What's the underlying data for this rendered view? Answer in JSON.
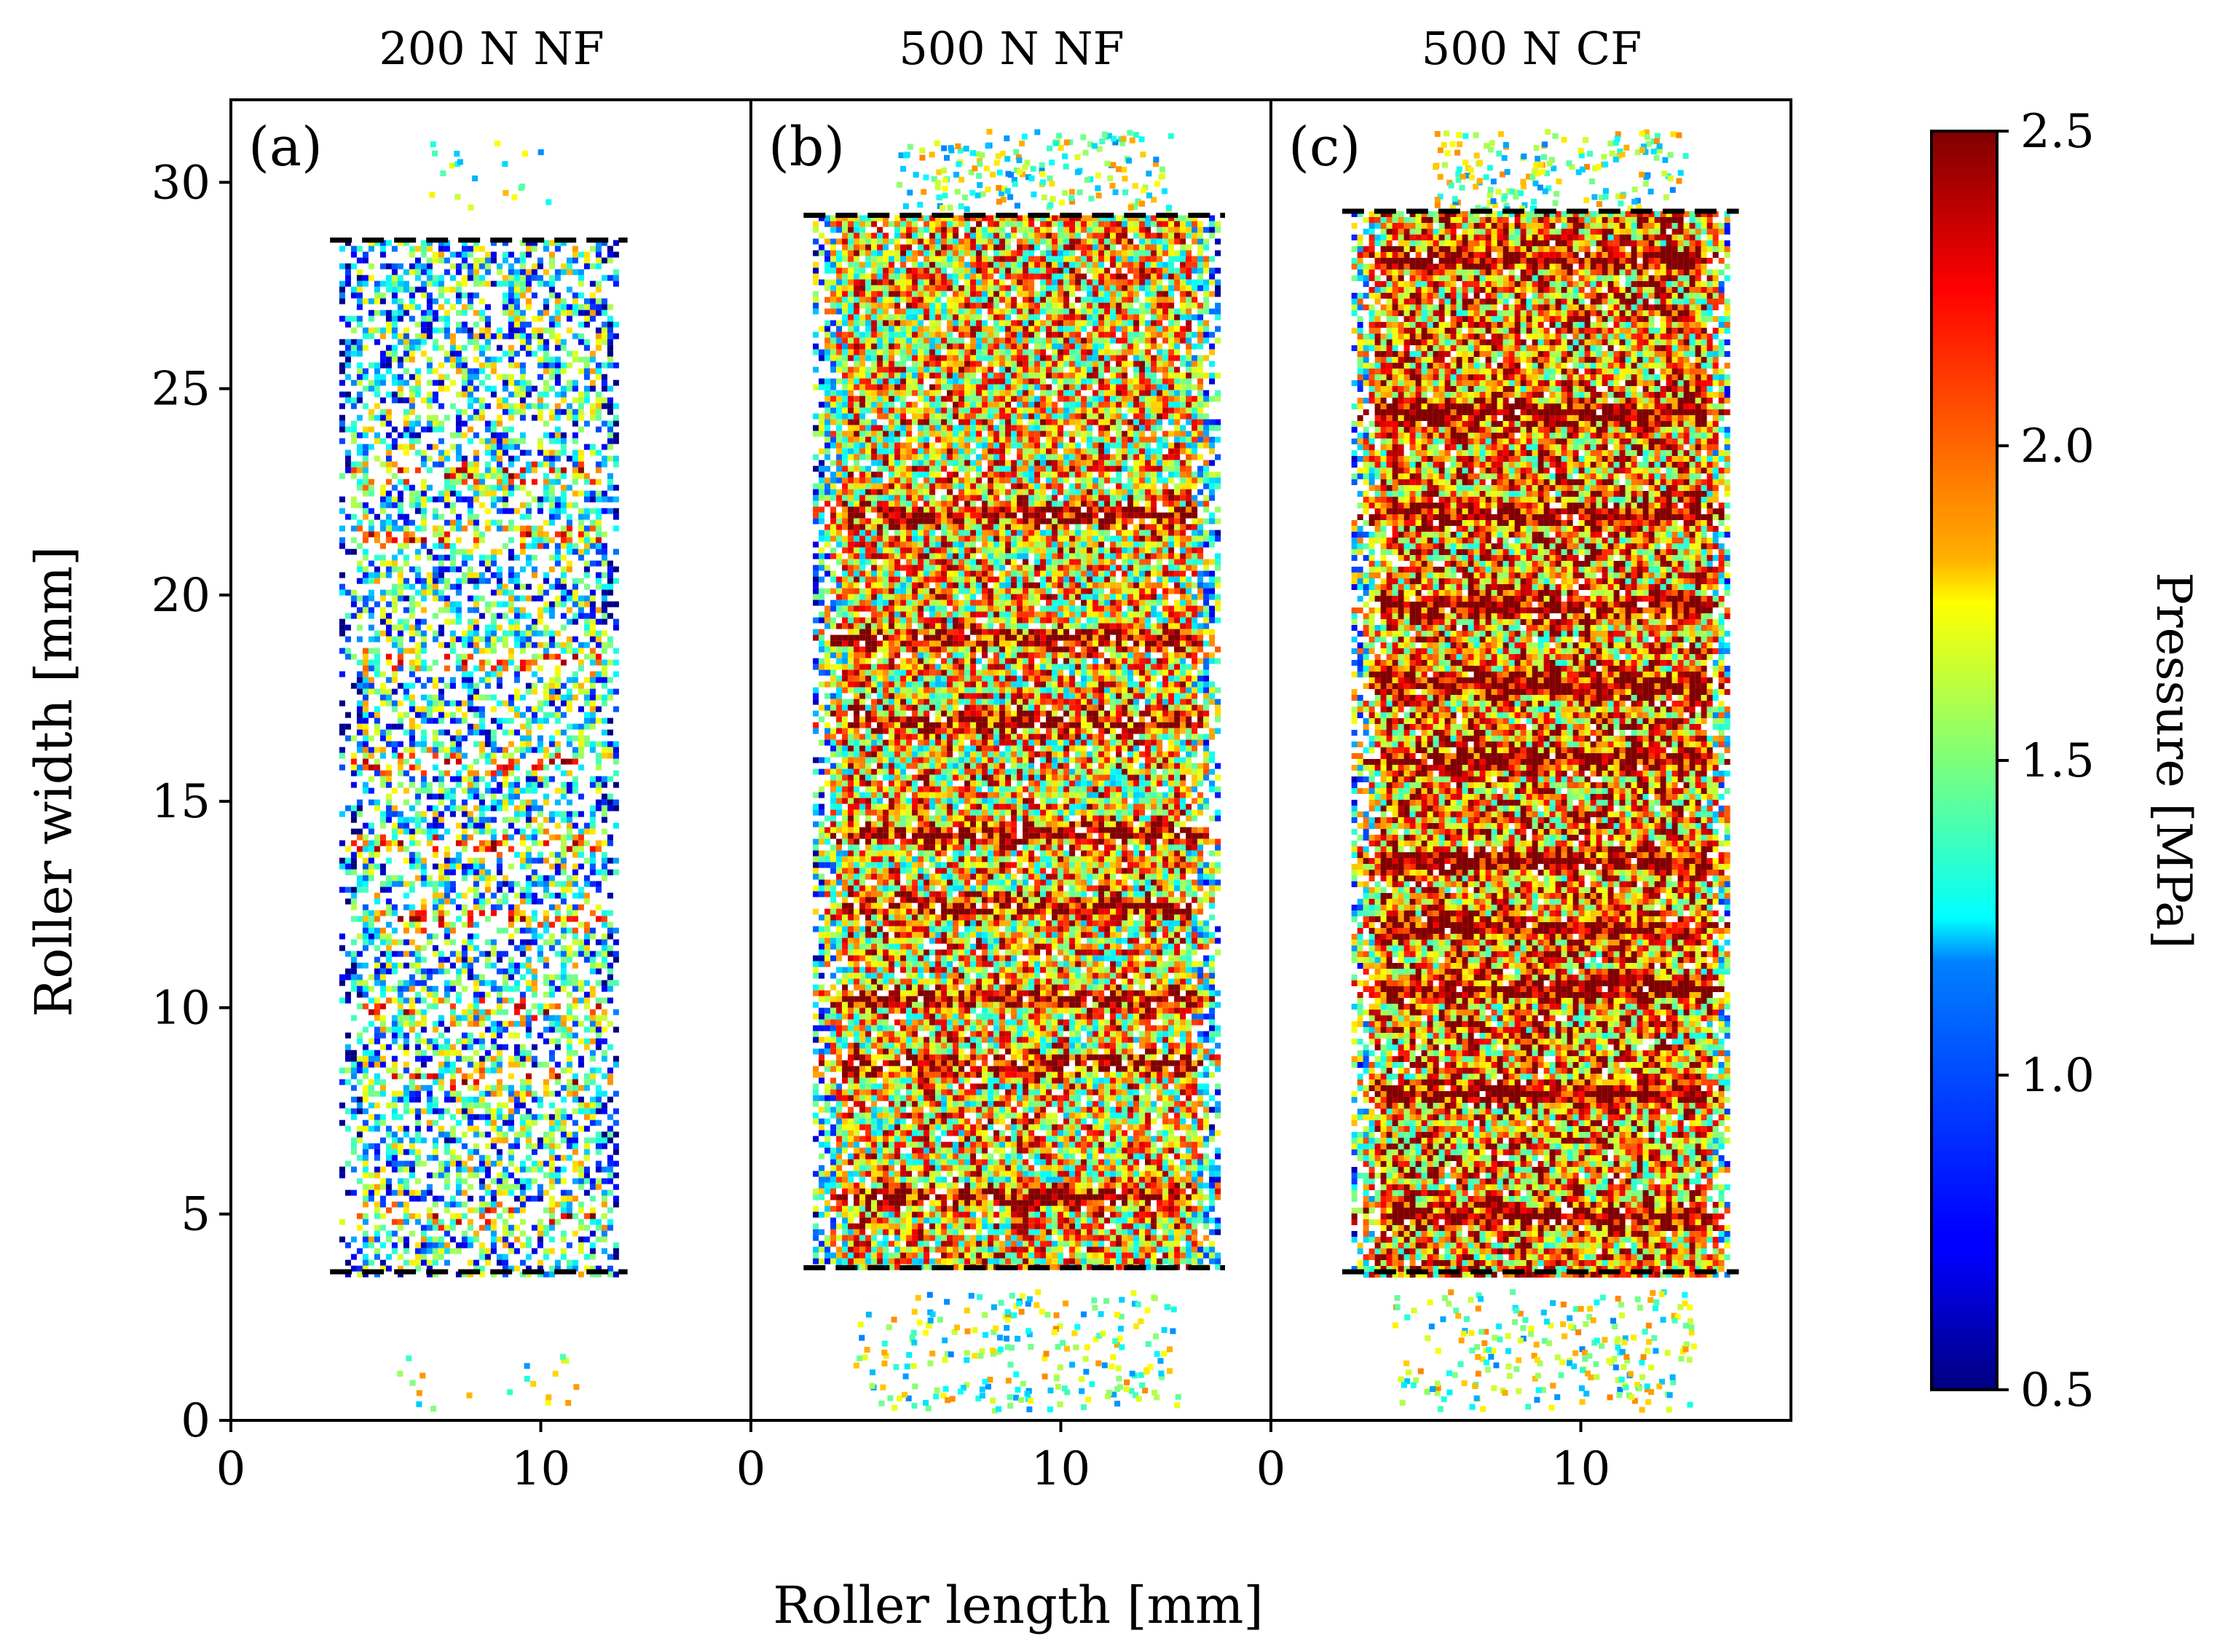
{
  "chart_data": {
    "type": "heatmap",
    "xlabel": "Roller length [mm]",
    "ylabel": "Roller width [mm]",
    "xlim": [
      0,
      16.8
    ],
    "ylim": [
      0,
      32
    ],
    "x_ticks": [
      0,
      10
    ],
    "y_ticks": [
      0,
      5,
      10,
      15,
      20,
      25,
      30
    ],
    "colorbar": {
      "label": "Pressure [MPa]",
      "range": [
        0.5,
        2.5
      ],
      "ticks": [
        "0.5",
        "1.0",
        "1.5",
        "2.0",
        "2.5"
      ],
      "colormap": "jet"
    },
    "panels": [
      {
        "title": "200 N NF",
        "tag": "(a)",
        "dashed_lines_y": [
          28.6,
          3.6
        ],
        "contact_x_range": [
          3.5,
          12.5
        ],
        "contact_y_range": [
          3.6,
          28.6
        ],
        "mean_intensity": 0.38,
        "fill_density": 0.55,
        "bands_y": [
          5,
          8.3,
          10,
          12.2,
          14,
          16,
          18.5,
          21.5,
          23
        ]
      },
      {
        "title": "500 N NF",
        "tag": "(b)",
        "dashed_lines_y": [
          29.2,
          3.7
        ],
        "contact_x_range": [
          2.0,
          15.0
        ],
        "contact_y_range": [
          3.7,
          29.2
        ],
        "mean_intensity": 0.66,
        "fill_density": 0.93,
        "bands_y": [
          5.5,
          8.7,
          10.3,
          12.5,
          14.3,
          17,
          19,
          22
        ]
      },
      {
        "title": "500 N CF",
        "tag": "(c)",
        "dashed_lines_y": [
          29.3,
          3.6
        ],
        "contact_x_range": [
          2.6,
          14.8
        ],
        "contact_y_range": [
          3.6,
          29.3
        ],
        "mean_intensity": 0.74,
        "fill_density": 0.96,
        "bands_y": [
          5,
          8,
          10.5,
          12,
          13.6,
          16.1,
          17.9,
          19.8,
          22,
          24.5,
          28.2
        ]
      }
    ]
  }
}
